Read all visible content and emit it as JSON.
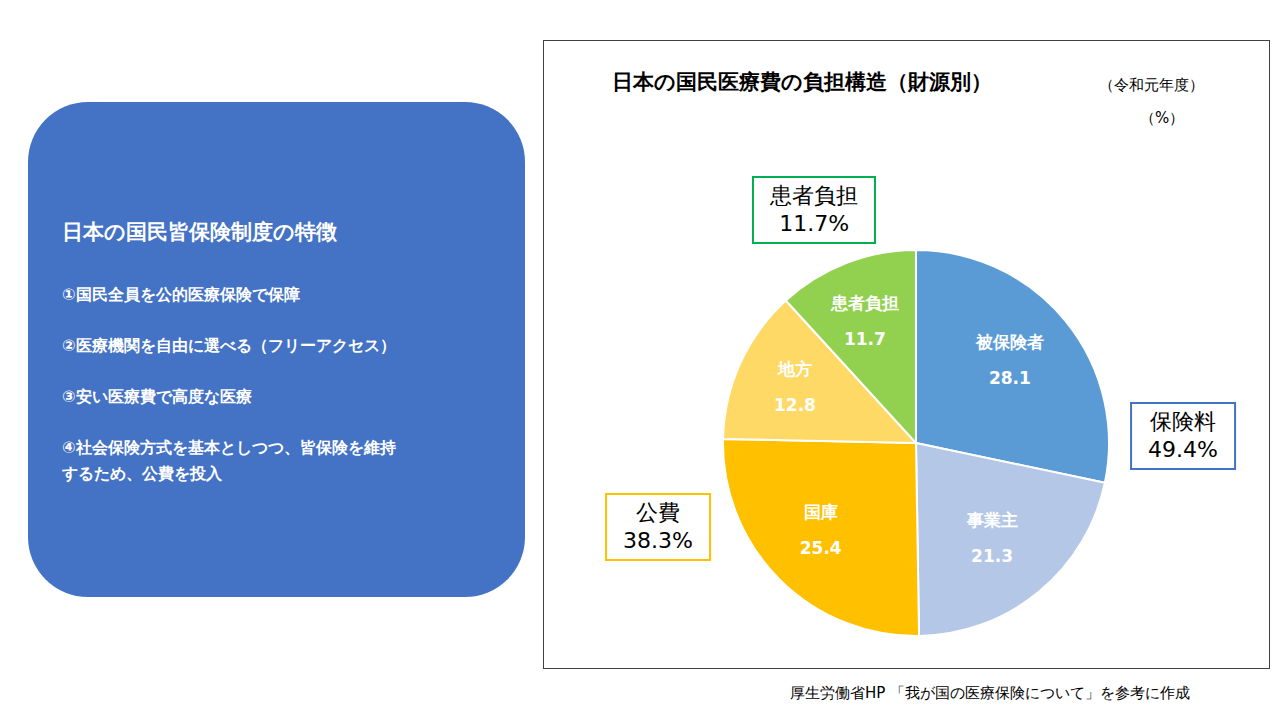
{
  "panel": {
    "title": "日本の国民皆保険制度の特徴",
    "items": [
      "①国民全員を公的医療保険で保障",
      "②医療機関を自由に選べる（フリーアクセス）",
      "③安い医療費で高度な医療",
      "④社会保険方式を基本としつつ、皆保険を維持\nするため、公費を投入"
    ]
  },
  "chart_data": {
    "type": "pie",
    "title": "日本の国民医療費の負担構造（財源別）",
    "subtitle": "（令和元年度）",
    "unit": "（%）",
    "categories": [
      "被保険者",
      "事業主",
      "国庫",
      "地方",
      "患者負担"
    ],
    "values": [
      28.1,
      21.3,
      25.4,
      12.8,
      11.7
    ],
    "colors": [
      "#5b9bd5",
      "#b4c7e7",
      "#ffc000",
      "#ffd966",
      "#92d050"
    ],
    "data_labels": true,
    "groups": {
      "names": [
        "保険料",
        "公費",
        "患者負担"
      ],
      "values": [
        49.4,
        38.3,
        11.7
      ],
      "value_labels": [
        "49.4%",
        "38.3%",
        "11.7%"
      ],
      "colors": [
        "#4472c4",
        "#ffc000",
        "#00b050"
      ]
    }
  },
  "source": "厚生労働省HP 「我が国の医療保険について」を参考に作成"
}
